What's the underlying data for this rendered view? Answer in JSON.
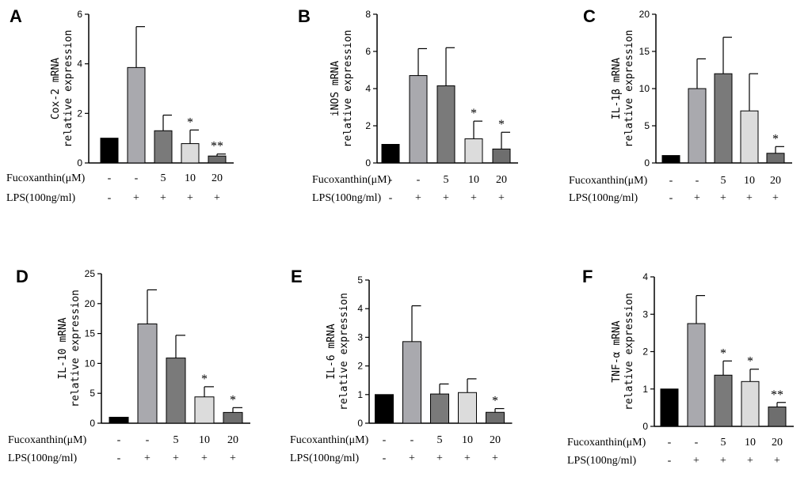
{
  "colors": {
    "bar_fills": [
      "#000000",
      "#a9a9ae",
      "#7a7a7a",
      "#dcdcdc",
      "#6e6e6e"
    ],
    "axis": "#000000"
  },
  "treatment_rows": {
    "fucoxanthin_label": "Fucoxanthin(μM)",
    "lps_label": "LPS(100ng/ml)",
    "fucoxanthin_values": [
      "-",
      "-",
      "5",
      "10",
      "20"
    ],
    "lps_values": [
      "-",
      "+",
      "+",
      "+",
      "+"
    ]
  },
  "chart_data": [
    {
      "type": "bar",
      "panel": "A",
      "ylabel_line1": "Cox-2 mRNA",
      "ylabel_line2": "relative expression",
      "ylim": [
        0,
        6
      ],
      "yticks": [
        0,
        2,
        4,
        6
      ],
      "values": [
        1.0,
        3.85,
        1.3,
        0.78,
        0.28
      ],
      "errors": [
        0,
        1.65,
        0.63,
        0.55,
        0.08
      ],
      "significance": [
        "",
        "",
        "",
        "*",
        "**"
      ]
    },
    {
      "type": "bar",
      "panel": "B",
      "ylabel_line1": "iNOS mRNA",
      "ylabel_line2": "relative expression",
      "ylim": [
        0,
        8
      ],
      "yticks": [
        0,
        2,
        4,
        6,
        8
      ],
      "values": [
        1.0,
        4.7,
        4.15,
        1.3,
        0.75
      ],
      "errors": [
        0,
        1.45,
        2.05,
        0.95,
        0.9
      ],
      "significance": [
        "",
        "",
        "",
        "*",
        "*"
      ]
    },
    {
      "type": "bar",
      "panel": "C",
      "ylabel_line1": "IL-1β mRNA",
      "ylabel_line2": "relative expression",
      "ylim": [
        0,
        20
      ],
      "yticks": [
        0,
        5,
        10,
        15,
        20
      ],
      "values": [
        1.0,
        10.0,
        12.0,
        7.0,
        1.3
      ],
      "errors": [
        0,
        4.0,
        4.9,
        5.0,
        0.9
      ],
      "significance": [
        "",
        "",
        "",
        "",
        "*"
      ]
    },
    {
      "type": "bar",
      "panel": "D",
      "ylabel_line1": "IL-10 mRNA",
      "ylabel_line2": "relative expression",
      "ylim": [
        0,
        25
      ],
      "yticks": [
        0,
        5,
        10,
        15,
        20,
        25
      ],
      "values": [
        1.0,
        16.6,
        10.9,
        4.4,
        1.8
      ],
      "errors": [
        0,
        5.7,
        3.8,
        1.7,
        0.8
      ],
      "significance": [
        "",
        "",
        "",
        "*",
        "*"
      ]
    },
    {
      "type": "bar",
      "panel": "E",
      "ylabel_line1": "IL-6 mRNA",
      "ylabel_line2": "relative expression",
      "ylim": [
        0,
        5
      ],
      "yticks": [
        0,
        1,
        2,
        3,
        4,
        5
      ],
      "values": [
        1.0,
        2.85,
        1.02,
        1.07,
        0.38
      ],
      "errors": [
        0,
        1.25,
        0.35,
        0.48,
        0.13
      ],
      "significance": [
        "",
        "",
        "",
        "",
        "*"
      ]
    },
    {
      "type": "bar",
      "panel": "F",
      "ylabel_line1": "TNF-α mRNA",
      "ylabel_line2": "relative expression",
      "ylim": [
        0,
        4
      ],
      "yticks": [
        0,
        1,
        2,
        3,
        4
      ],
      "values": [
        1.0,
        2.75,
        1.37,
        1.2,
        0.52
      ],
      "errors": [
        0,
        0.75,
        0.38,
        0.33,
        0.12
      ],
      "significance": [
        "",
        "",
        "*",
        "*",
        "**"
      ]
    }
  ]
}
